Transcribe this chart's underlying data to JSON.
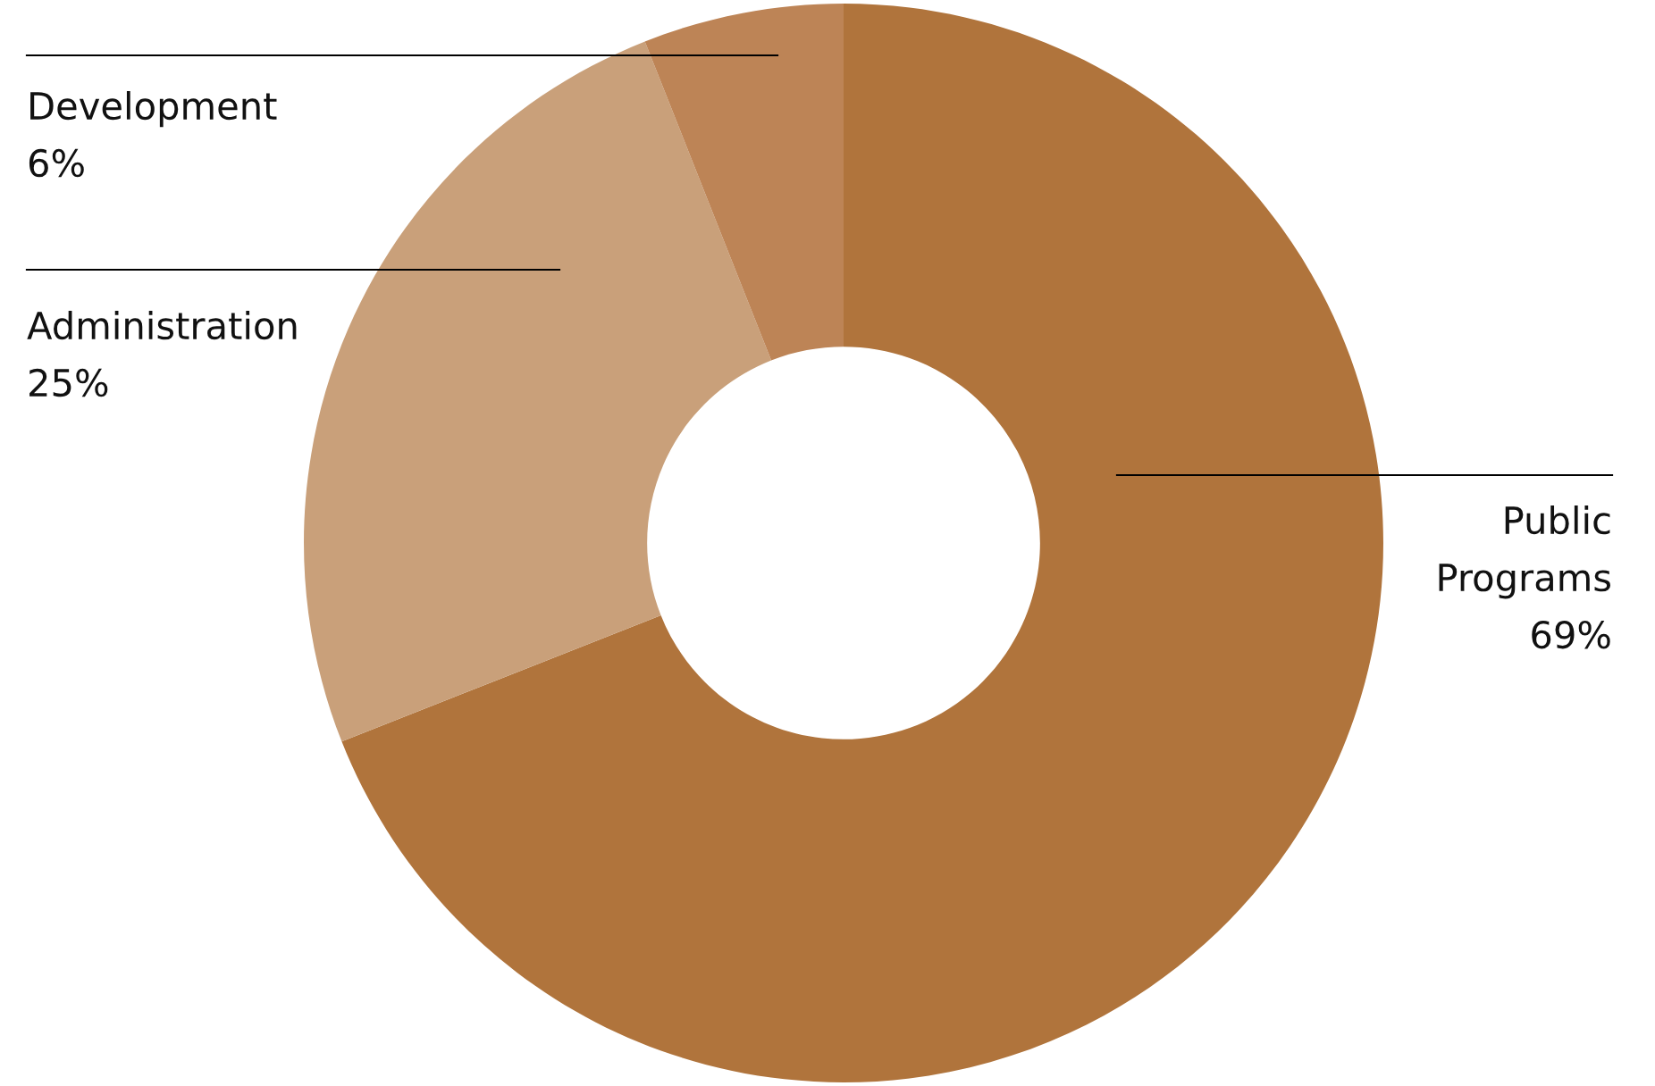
{
  "chart_data": {
    "type": "donut",
    "categories": [
      "Public\nPrograms",
      "Administration",
      "Development"
    ],
    "values": [
      69,
      25,
      6
    ],
    "colors": [
      "#b0743c",
      "#c9a07a",
      "#bd8456"
    ],
    "value_labels": [
      "69%",
      "25%",
      "6%"
    ],
    "legend": false
  }
}
